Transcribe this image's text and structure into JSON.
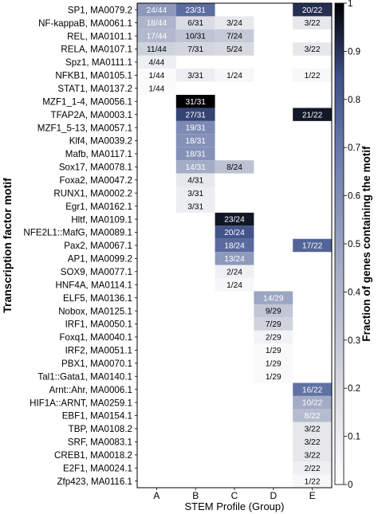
{
  "chart_data": {
    "type": "heatmap",
    "ylabel": "Transcription factor motif",
    "xlabel": "STEM Profile (Group)",
    "colorbar_label": "Fraction of genes containing the motif",
    "colorbar_ticks": [
      "0",
      "0.1",
      "0.2",
      "0.3",
      "0.4",
      "0.5",
      "0.6",
      "0.7",
      "0.8",
      "0.9",
      "1"
    ],
    "colorbar_range": [
      0,
      1
    ],
    "columns": [
      "A",
      "B",
      "C",
      "D",
      "E"
    ],
    "rows": [
      "SP1, MA0079.2",
      "NF-kappaB, MA0061.1",
      "REL, MA0101.1",
      "RELA, MA0107.1",
      "Spz1, MA0111.1",
      "NFKB1, MA0105.1",
      "STAT1, MA0137.2",
      "MZF1_1-4, MA0056.1",
      "TFAP2A, MA0003.1",
      "MZF1_5-13, MA0057.1",
      "Klf4, MA0039.2",
      "Mafb, MA0117.1",
      "Sox17, MA0078.1",
      "Foxa2, MA0047.2",
      "RUNX1, MA0002.2",
      "Egr1, MA0162.1",
      "Hltf, MA0109.1",
      "NFE2L1::MafG, MA0089.1",
      "Pax2, MA0067.1",
      "AP1, MA0099.2",
      "SOX9, MA0077.1",
      "HNF4A, MA0114.1",
      "ELF5, MA0136.1",
      "Nobox, MA0125.1",
      "IRF1, MA0050.1",
      "Foxq1, MA0040.1",
      "IRF2, MA0051.1",
      "PBX1, MA0070.1",
      "Tal1::Gata1, MA0140.1",
      "Arnt::Ahr, MA0006.1",
      "HIF1A::ARNT, MA0259.1",
      "EBF1, MA0154.1",
      "TBP, MA0108.2",
      "SRF, MA0083.1",
      "CREB1, MA0018.2",
      "E2F1, MA0024.1",
      "Zfp423, MA0116.1"
    ],
    "cells": [
      {
        "row": 0,
        "col": 0,
        "label": "24/44",
        "value": 0.545
      },
      {
        "row": 0,
        "col": 1,
        "label": "23/31",
        "value": 0.742
      },
      {
        "row": 0,
        "col": 4,
        "label": "20/22",
        "value": 0.909
      },
      {
        "row": 1,
        "col": 0,
        "label": "18/44",
        "value": 0.409
      },
      {
        "row": 1,
        "col": 1,
        "label": "6/31",
        "value": 0.194
      },
      {
        "row": 1,
        "col": 2,
        "label": "3/24",
        "value": 0.125
      },
      {
        "row": 1,
        "col": 4,
        "label": "3/22",
        "value": 0.136
      },
      {
        "row": 2,
        "col": 0,
        "label": "17/44",
        "value": 0.386
      },
      {
        "row": 2,
        "col": 1,
        "label": "10/31",
        "value": 0.323
      },
      {
        "row": 2,
        "col": 2,
        "label": "7/24",
        "value": 0.292
      },
      {
        "row": 3,
        "col": 0,
        "label": "11/44",
        "value": 0.25
      },
      {
        "row": 3,
        "col": 1,
        "label": "7/31",
        "value": 0.226
      },
      {
        "row": 3,
        "col": 2,
        "label": "5/24",
        "value": 0.208
      },
      {
        "row": 3,
        "col": 4,
        "label": "3/22",
        "value": 0.136
      },
      {
        "row": 4,
        "col": 0,
        "label": "4/44",
        "value": 0.091
      },
      {
        "row": 5,
        "col": 0,
        "label": "1/44",
        "value": 0.023
      },
      {
        "row": 5,
        "col": 1,
        "label": "3/31",
        "value": 0.097
      },
      {
        "row": 5,
        "col": 2,
        "label": "1/24",
        "value": 0.042
      },
      {
        "row": 5,
        "col": 4,
        "label": "1/22",
        "value": 0.045
      },
      {
        "row": 6,
        "col": 0,
        "label": "1/44",
        "value": 0.023
      },
      {
        "row": 7,
        "col": 1,
        "label": "31/31",
        "value": 1.0
      },
      {
        "row": 8,
        "col": 1,
        "label": "27/31",
        "value": 0.871
      },
      {
        "row": 8,
        "col": 4,
        "label": "21/22",
        "value": 0.955
      },
      {
        "row": 9,
        "col": 1,
        "label": "19/31",
        "value": 0.613
      },
      {
        "row": 10,
        "col": 1,
        "label": "18/31",
        "value": 0.581
      },
      {
        "row": 11,
        "col": 1,
        "label": "18/31",
        "value": 0.581
      },
      {
        "row": 12,
        "col": 1,
        "label": "14/31",
        "value": 0.452
      },
      {
        "row": 12,
        "col": 2,
        "label": "8/24",
        "value": 0.333
      },
      {
        "row": 13,
        "col": 1,
        "label": "4/31",
        "value": 0.129
      },
      {
        "row": 14,
        "col": 1,
        "label": "3/31",
        "value": 0.097
      },
      {
        "row": 15,
        "col": 1,
        "label": "3/31",
        "value": 0.097
      },
      {
        "row": 16,
        "col": 2,
        "label": "23/24",
        "value": 0.958
      },
      {
        "row": 17,
        "col": 2,
        "label": "20/24",
        "value": 0.833
      },
      {
        "row": 18,
        "col": 2,
        "label": "18/24",
        "value": 0.75
      },
      {
        "row": 18,
        "col": 4,
        "label": "17/22",
        "value": 0.773
      },
      {
        "row": 19,
        "col": 2,
        "label": "13/24",
        "value": 0.542
      },
      {
        "row": 20,
        "col": 2,
        "label": "2/24",
        "value": 0.083
      },
      {
        "row": 21,
        "col": 2,
        "label": "1/24",
        "value": 0.042
      },
      {
        "row": 22,
        "col": 3,
        "label": "14/29",
        "value": 0.483
      },
      {
        "row": 23,
        "col": 3,
        "label": "9/29",
        "value": 0.31
      },
      {
        "row": 24,
        "col": 3,
        "label": "7/29",
        "value": 0.241
      },
      {
        "row": 25,
        "col": 3,
        "label": "2/29",
        "value": 0.069
      },
      {
        "row": 26,
        "col": 3,
        "label": "1/29",
        "value": 0.034
      },
      {
        "row": 27,
        "col": 3,
        "label": "1/29",
        "value": 0.034
      },
      {
        "row": 28,
        "col": 3,
        "label": "1/29",
        "value": 0.034
      },
      {
        "row": 29,
        "col": 4,
        "label": "16/22",
        "value": 0.727
      },
      {
        "row": 30,
        "col": 4,
        "label": "10/22",
        "value": 0.455
      },
      {
        "row": 31,
        "col": 4,
        "label": "8/22",
        "value": 0.364
      },
      {
        "row": 32,
        "col": 4,
        "label": "3/22",
        "value": 0.136
      },
      {
        "row": 33,
        "col": 4,
        "label": "3/22",
        "value": 0.136
      },
      {
        "row": 34,
        "col": 4,
        "label": "3/22",
        "value": 0.136
      },
      {
        "row": 35,
        "col": 4,
        "label": "2/22",
        "value": 0.091
      },
      {
        "row": 36,
        "col": 4,
        "label": "1/22",
        "value": 0.045
      }
    ]
  }
}
